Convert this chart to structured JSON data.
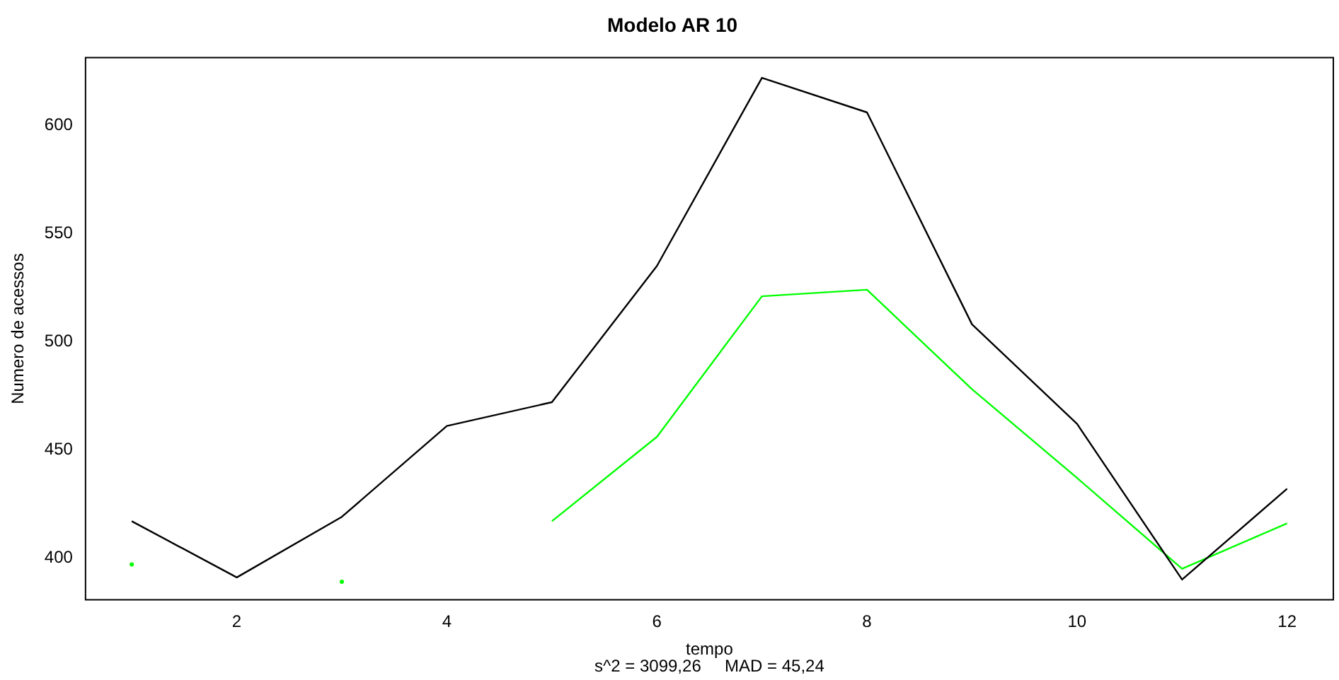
{
  "chart_data": {
    "type": "line",
    "title": "Modelo AR 10",
    "xlabel": "tempo",
    "ylabel": "Numero de acessos",
    "annotations": [
      "s^2 = 3099,26     MAD = 45,24"
    ],
    "x": [
      1,
      2,
      3,
      4,
      5,
      6,
      7,
      8,
      9,
      10,
      11,
      12
    ],
    "series": [
      {
        "color": "#000000",
        "values": [
          417,
          391,
          419,
          461,
          472,
          535,
          622,
          606,
          508,
          462,
          390,
          432
        ]
      },
      {
        "color": "#00ff00",
        "values": [
          397,
          null,
          389,
          null,
          417,
          456,
          521,
          524,
          478,
          437,
          395,
          416
        ]
      }
    ],
    "xlim": [
      0.56,
      12.44
    ],
    "xticks": [
      2,
      4,
      6,
      8,
      10,
      12
    ],
    "ylim": [
      380.7,
      631.3
    ],
    "yticks": [
      400,
      450,
      500,
      550,
      600
    ],
    "grid": false,
    "legend": false,
    "marker": "none",
    "line_style": "solid"
  }
}
